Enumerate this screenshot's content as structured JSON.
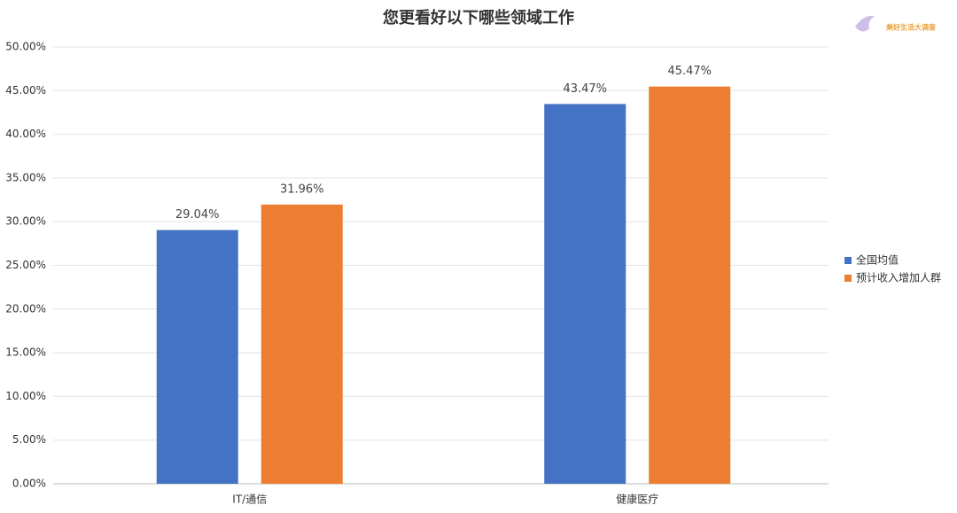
{
  "chart_data": {
    "type": "bar",
    "title": "您更看好以下哪些领域工作",
    "watermark": "美好生活大调查",
    "categories": [
      "IT/通信",
      "健康医疗"
    ],
    "series": [
      {
        "name": "全国均值",
        "color": "#4472c4",
        "values": [
          29.04,
          43.47
        ],
        "value_labels": [
          "29.04%",
          "43.47%"
        ]
      },
      {
        "name": "预计收入增加人群",
        "color": "#ed7d31",
        "values": [
          31.96,
          45.47
        ],
        "value_labels": [
          "31.96%",
          "45.47%"
        ]
      }
    ],
    "ylim": [
      0,
      50
    ],
    "yticks": [
      {
        "value": 0,
        "label": "0.00%"
      },
      {
        "value": 5,
        "label": "5.00%"
      },
      {
        "value": 10,
        "label": "10.00%"
      },
      {
        "value": 15,
        "label": "15.00%"
      },
      {
        "value": 20,
        "label": "20.00%"
      },
      {
        "value": 25,
        "label": "25.00%"
      },
      {
        "value": 30,
        "label": "30.00%"
      },
      {
        "value": 35,
        "label": "35.00%"
      },
      {
        "value": 40,
        "label": "40.00%"
      },
      {
        "value": 45,
        "label": "45.00%"
      },
      {
        "value": 50,
        "label": "50.00%"
      }
    ],
    "grid": true,
    "legend": "right"
  }
}
